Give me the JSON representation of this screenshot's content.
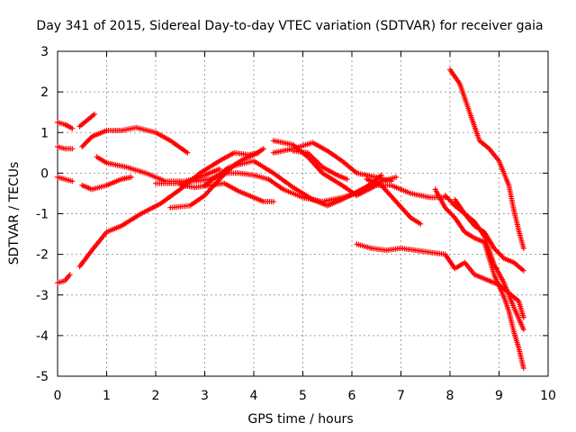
{
  "chart_data": {
    "type": "scatter",
    "title": "Day 341 of 2015, Sidereal Day-to-day VTEC variation (SDTVAR) for receiver gaia",
    "xlabel": "GPS time / hours",
    "ylabel": "SDTVAR / TECUs",
    "xlim": [
      0,
      10
    ],
    "ylim": [
      -5,
      3
    ],
    "x_ticks": [
      0,
      1,
      2,
      3,
      4,
      5,
      6,
      7,
      8,
      9,
      10
    ],
    "y_ticks": [
      -5,
      -4,
      -3,
      -2,
      -1,
      0,
      1,
      2,
      3
    ],
    "x_tick_labels": [
      "0",
      "1",
      "2",
      "3",
      "4",
      "5",
      "6",
      "7",
      "8",
      "9",
      "10"
    ],
    "y_tick_labels": [
      "-5",
      "-4",
      "-3",
      "-2",
      "-1",
      "0",
      "1",
      "2",
      "3"
    ],
    "grid": true,
    "marker": "+",
    "marker_color": "#ff0000",
    "series": [
      {
        "name": "s1",
        "points": [
          [
            0.0,
            1.25
          ],
          [
            0.15,
            1.2
          ],
          [
            0.3,
            1.1
          ]
        ]
      },
      {
        "name": "s2",
        "points": [
          [
            0.45,
            1.15
          ],
          [
            0.6,
            1.3
          ],
          [
            0.75,
            1.45
          ]
        ]
      },
      {
        "name": "s3",
        "points": [
          [
            0.0,
            0.65
          ],
          [
            0.15,
            0.6
          ],
          [
            0.3,
            0.6
          ]
        ]
      },
      {
        "name": "s4",
        "points": [
          [
            0.5,
            0.65
          ],
          [
            0.7,
            0.9
          ],
          [
            1.0,
            1.05
          ],
          [
            1.3,
            1.05
          ],
          [
            1.6,
            1.12
          ],
          [
            2.0,
            1.0
          ],
          [
            2.3,
            0.8
          ],
          [
            2.65,
            0.5
          ]
        ]
      },
      {
        "name": "s5",
        "points": [
          [
            0.0,
            -0.1
          ],
          [
            0.15,
            -0.15
          ],
          [
            0.3,
            -0.2
          ]
        ]
      },
      {
        "name": "s6",
        "points": [
          [
            0.5,
            -0.3
          ],
          [
            0.7,
            -0.4
          ],
          [
            1.0,
            -0.3
          ],
          [
            1.3,
            -0.15
          ],
          [
            1.5,
            -0.1
          ]
        ]
      },
      {
        "name": "s7",
        "points": [
          [
            0.8,
            0.4
          ],
          [
            1.0,
            0.25
          ],
          [
            1.4,
            0.15
          ],
          [
            1.8,
            0.0
          ],
          [
            2.2,
            -0.2
          ],
          [
            2.6,
            -0.2
          ],
          [
            3.0,
            -0.05
          ],
          [
            3.3,
            0.1
          ]
        ]
      },
      {
        "name": "s8",
        "points": [
          [
            0.0,
            -2.7
          ],
          [
            0.15,
            -2.65
          ],
          [
            0.25,
            -2.5
          ]
        ]
      },
      {
        "name": "s9",
        "points": [
          [
            0.45,
            -2.3
          ],
          [
            0.7,
            -1.9
          ],
          [
            1.0,
            -1.45
          ],
          [
            1.3,
            -1.3
          ],
          [
            1.7,
            -1.0
          ],
          [
            2.1,
            -0.75
          ],
          [
            2.5,
            -0.4
          ],
          [
            2.9,
            0.0
          ],
          [
            3.3,
            0.3
          ],
          [
            3.6,
            0.5
          ],
          [
            3.9,
            0.45
          ],
          [
            4.1,
            0.5
          ]
        ]
      },
      {
        "name": "s10",
        "points": [
          [
            2.3,
            -0.85
          ],
          [
            2.7,
            -0.8
          ],
          [
            3.0,
            -0.55
          ],
          [
            3.3,
            -0.15
          ],
          [
            3.6,
            0.2
          ],
          [
            3.8,
            0.35
          ],
          [
            4.0,
            0.45
          ],
          [
            4.2,
            0.6
          ]
        ]
      },
      {
        "name": "s11",
        "points": [
          [
            2.0,
            -0.25
          ],
          [
            2.4,
            -0.25
          ],
          [
            2.8,
            -0.2
          ],
          [
            3.1,
            -0.15
          ],
          [
            3.4,
            0.0
          ],
          [
            3.7,
            0.0
          ],
          [
            4.0,
            -0.05
          ],
          [
            4.3,
            -0.15
          ],
          [
            4.6,
            -0.4
          ],
          [
            5.0,
            -0.6
          ],
          [
            5.4,
            -0.7
          ],
          [
            5.8,
            -0.6
          ],
          [
            6.1,
            -0.5
          ],
          [
            6.4,
            -0.25
          ],
          [
            6.6,
            -0.05
          ]
        ]
      },
      {
        "name": "s12",
        "points": [
          [
            2.5,
            -0.3
          ],
          [
            2.8,
            -0.35
          ],
          [
            3.1,
            -0.3
          ],
          [
            3.4,
            -0.25
          ],
          [
            3.7,
            -0.45
          ],
          [
            4.0,
            -0.6
          ],
          [
            4.2,
            -0.7
          ],
          [
            4.4,
            -0.7
          ]
        ]
      },
      {
        "name": "s13",
        "points": [
          [
            3.0,
            -0.3
          ],
          [
            3.5,
            0.15
          ],
          [
            4.0,
            0.3
          ],
          [
            4.4,
            0.0
          ],
          [
            4.8,
            -0.35
          ],
          [
            5.2,
            -0.65
          ],
          [
            5.5,
            -0.8
          ],
          [
            5.8,
            -0.65
          ],
          [
            6.2,
            -0.4
          ],
          [
            6.6,
            -0.2
          ],
          [
            6.9,
            -0.1
          ]
        ]
      },
      {
        "name": "s14",
        "points": [
          [
            4.4,
            0.8
          ],
          [
            4.8,
            0.7
          ],
          [
            5.1,
            0.4
          ],
          [
            5.4,
            0.0
          ],
          [
            5.8,
            -0.3
          ],
          [
            6.1,
            -0.55
          ],
          [
            6.5,
            -0.3
          ],
          [
            6.8,
            -0.3
          ],
          [
            7.2,
            -0.5
          ],
          [
            7.6,
            -0.6
          ],
          [
            7.9,
            -0.6
          ]
        ]
      },
      {
        "name": "s15",
        "points": [
          [
            4.4,
            0.5
          ],
          [
            4.8,
            0.6
          ],
          [
            5.2,
            0.75
          ],
          [
            5.5,
            0.55
          ],
          [
            5.8,
            0.3
          ],
          [
            6.1,
            0.0
          ],
          [
            6.5,
            -0.1
          ],
          [
            6.8,
            -0.2
          ]
        ]
      },
      {
        "name": "s16",
        "points": [
          [
            4.8,
            0.55
          ],
          [
            5.1,
            0.5
          ],
          [
            5.4,
            0.15
          ],
          [
            5.7,
            -0.05
          ],
          [
            5.9,
            -0.15
          ]
        ]
      },
      {
        "name": "s17",
        "points": [
          [
            6.3,
            -0.15
          ],
          [
            6.6,
            -0.3
          ],
          [
            6.9,
            -0.7
          ],
          [
            7.2,
            -1.1
          ],
          [
            7.4,
            -1.25
          ]
        ]
      },
      {
        "name": "s18",
        "points": [
          [
            6.1,
            -1.75
          ],
          [
            6.4,
            -1.85
          ],
          [
            6.7,
            -1.9
          ],
          [
            7.0,
            -1.85
          ],
          [
            7.3,
            -1.9
          ],
          [
            7.6,
            -1.95
          ],
          [
            7.9,
            -2.0
          ],
          [
            8.1,
            -2.35
          ],
          [
            8.3,
            -2.2
          ],
          [
            8.5,
            -2.5
          ],
          [
            8.8,
            -2.65
          ],
          [
            9.0,
            -2.75
          ],
          [
            9.2,
            -2.95
          ],
          [
            9.4,
            -3.15
          ],
          [
            9.5,
            -3.55
          ]
        ]
      },
      {
        "name": "s19",
        "points": [
          [
            7.9,
            -0.55
          ],
          [
            8.1,
            -0.8
          ],
          [
            8.3,
            -1.0
          ],
          [
            8.5,
            -1.3
          ],
          [
            8.7,
            -1.45
          ],
          [
            8.9,
            -1.85
          ],
          [
            9.1,
            -2.1
          ],
          [
            9.3,
            -2.2
          ],
          [
            9.5,
            -2.4
          ]
        ]
      },
      {
        "name": "s20",
        "points": [
          [
            7.7,
            -0.4
          ],
          [
            7.9,
            -0.85
          ],
          [
            8.1,
            -1.1
          ],
          [
            8.3,
            -1.45
          ],
          [
            8.5,
            -1.6
          ],
          [
            8.7,
            -1.7
          ],
          [
            8.9,
            -2.5
          ],
          [
            9.1,
            -3.05
          ],
          [
            9.2,
            -3.4
          ],
          [
            9.3,
            -3.9
          ],
          [
            9.4,
            -4.3
          ],
          [
            9.5,
            -4.8
          ]
        ]
      },
      {
        "name": "s21",
        "points": [
          [
            8.1,
            -0.65
          ],
          [
            8.3,
            -1.0
          ],
          [
            8.5,
            -1.2
          ],
          [
            8.7,
            -1.55
          ],
          [
            8.9,
            -2.25
          ],
          [
            9.1,
            -2.7
          ],
          [
            9.3,
            -3.3
          ],
          [
            9.5,
            -3.85
          ]
        ]
      },
      {
        "name": "s22",
        "points": [
          [
            8.0,
            2.55
          ],
          [
            8.2,
            2.2
          ],
          [
            8.4,
            1.5
          ],
          [
            8.6,
            0.8
          ],
          [
            8.8,
            0.6
          ],
          [
            9.0,
            0.3
          ],
          [
            9.2,
            -0.3
          ],
          [
            9.3,
            -0.9
          ],
          [
            9.4,
            -1.4
          ],
          [
            9.5,
            -1.85
          ]
        ]
      }
    ]
  }
}
